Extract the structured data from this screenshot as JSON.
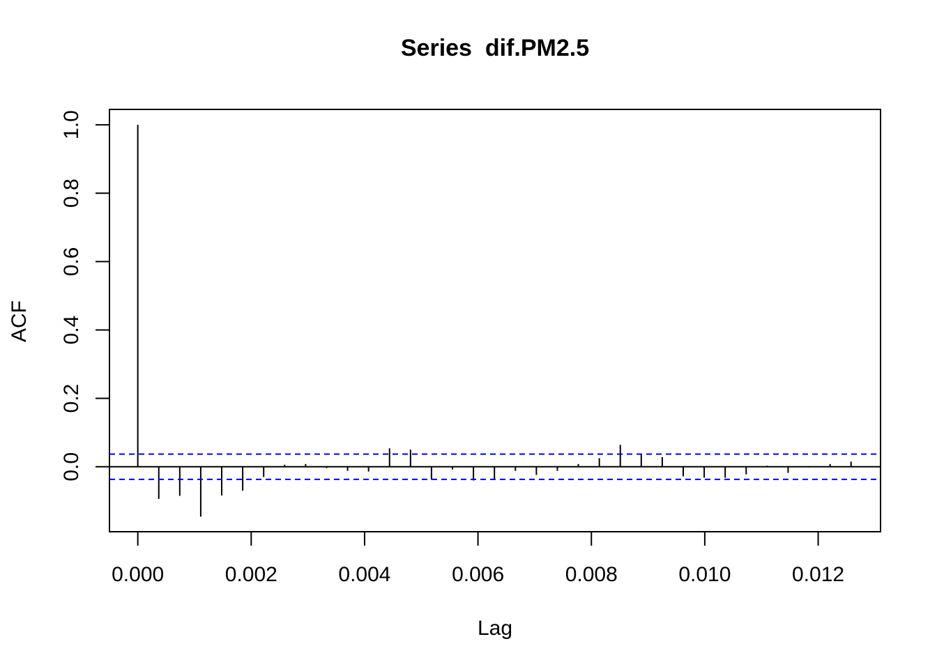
{
  "chart_data": {
    "type": "bar",
    "title": "Series  dif.PM2.5",
    "xlabel": "Lag",
    "ylabel": "ACF",
    "xlim": [
      -0.0005,
      0.0131
    ],
    "ylim": [
      -0.19,
      1.045
    ],
    "x_ticks": [
      0.0,
      0.002,
      0.004,
      0.006,
      0.008,
      0.01,
      0.012
    ],
    "x_tick_labels": [
      "0.000",
      "0.002",
      "0.004",
      "0.006",
      "0.008",
      "0.010",
      "0.012"
    ],
    "y_ticks": [
      0.0,
      0.2,
      0.4,
      0.6,
      0.8,
      1.0
    ],
    "y_tick_labels": [
      "0.0",
      "0.2",
      "0.4",
      "0.6",
      "0.8",
      "1.0"
    ],
    "confidence_bound": 0.037,
    "confidence_color": "#0000ff",
    "grid": false,
    "series": [
      {
        "x": [
          0.0,
          0.00037,
          0.00074,
          0.00111,
          0.00148,
          0.00185,
          0.00222,
          0.00259,
          0.00296,
          0.00333,
          0.0037,
          0.00407,
          0.00444,
          0.00481,
          0.00518,
          0.00555,
          0.00592,
          0.00629,
          0.00666,
          0.00703,
          0.0074,
          0.00777,
          0.00814,
          0.00851,
          0.00888,
          0.00925,
          0.00962,
          0.00999,
          0.01036,
          0.01073,
          0.0111,
          0.01147,
          0.01184,
          0.01221,
          0.01258
        ],
        "values": [
          1.0,
          -0.094,
          -0.085,
          -0.146,
          -0.084,
          -0.07,
          -0.03,
          0.006,
          0.008,
          -0.004,
          -0.012,
          -0.014,
          0.054,
          0.05,
          -0.038,
          -0.008,
          -0.04,
          -0.035,
          -0.012,
          -0.024,
          -0.012,
          0.008,
          0.025,
          0.064,
          0.038,
          0.028,
          -0.028,
          -0.032,
          -0.032,
          -0.022,
          0.003,
          -0.018,
          -0.002,
          0.008,
          0.015
        ]
      }
    ]
  }
}
